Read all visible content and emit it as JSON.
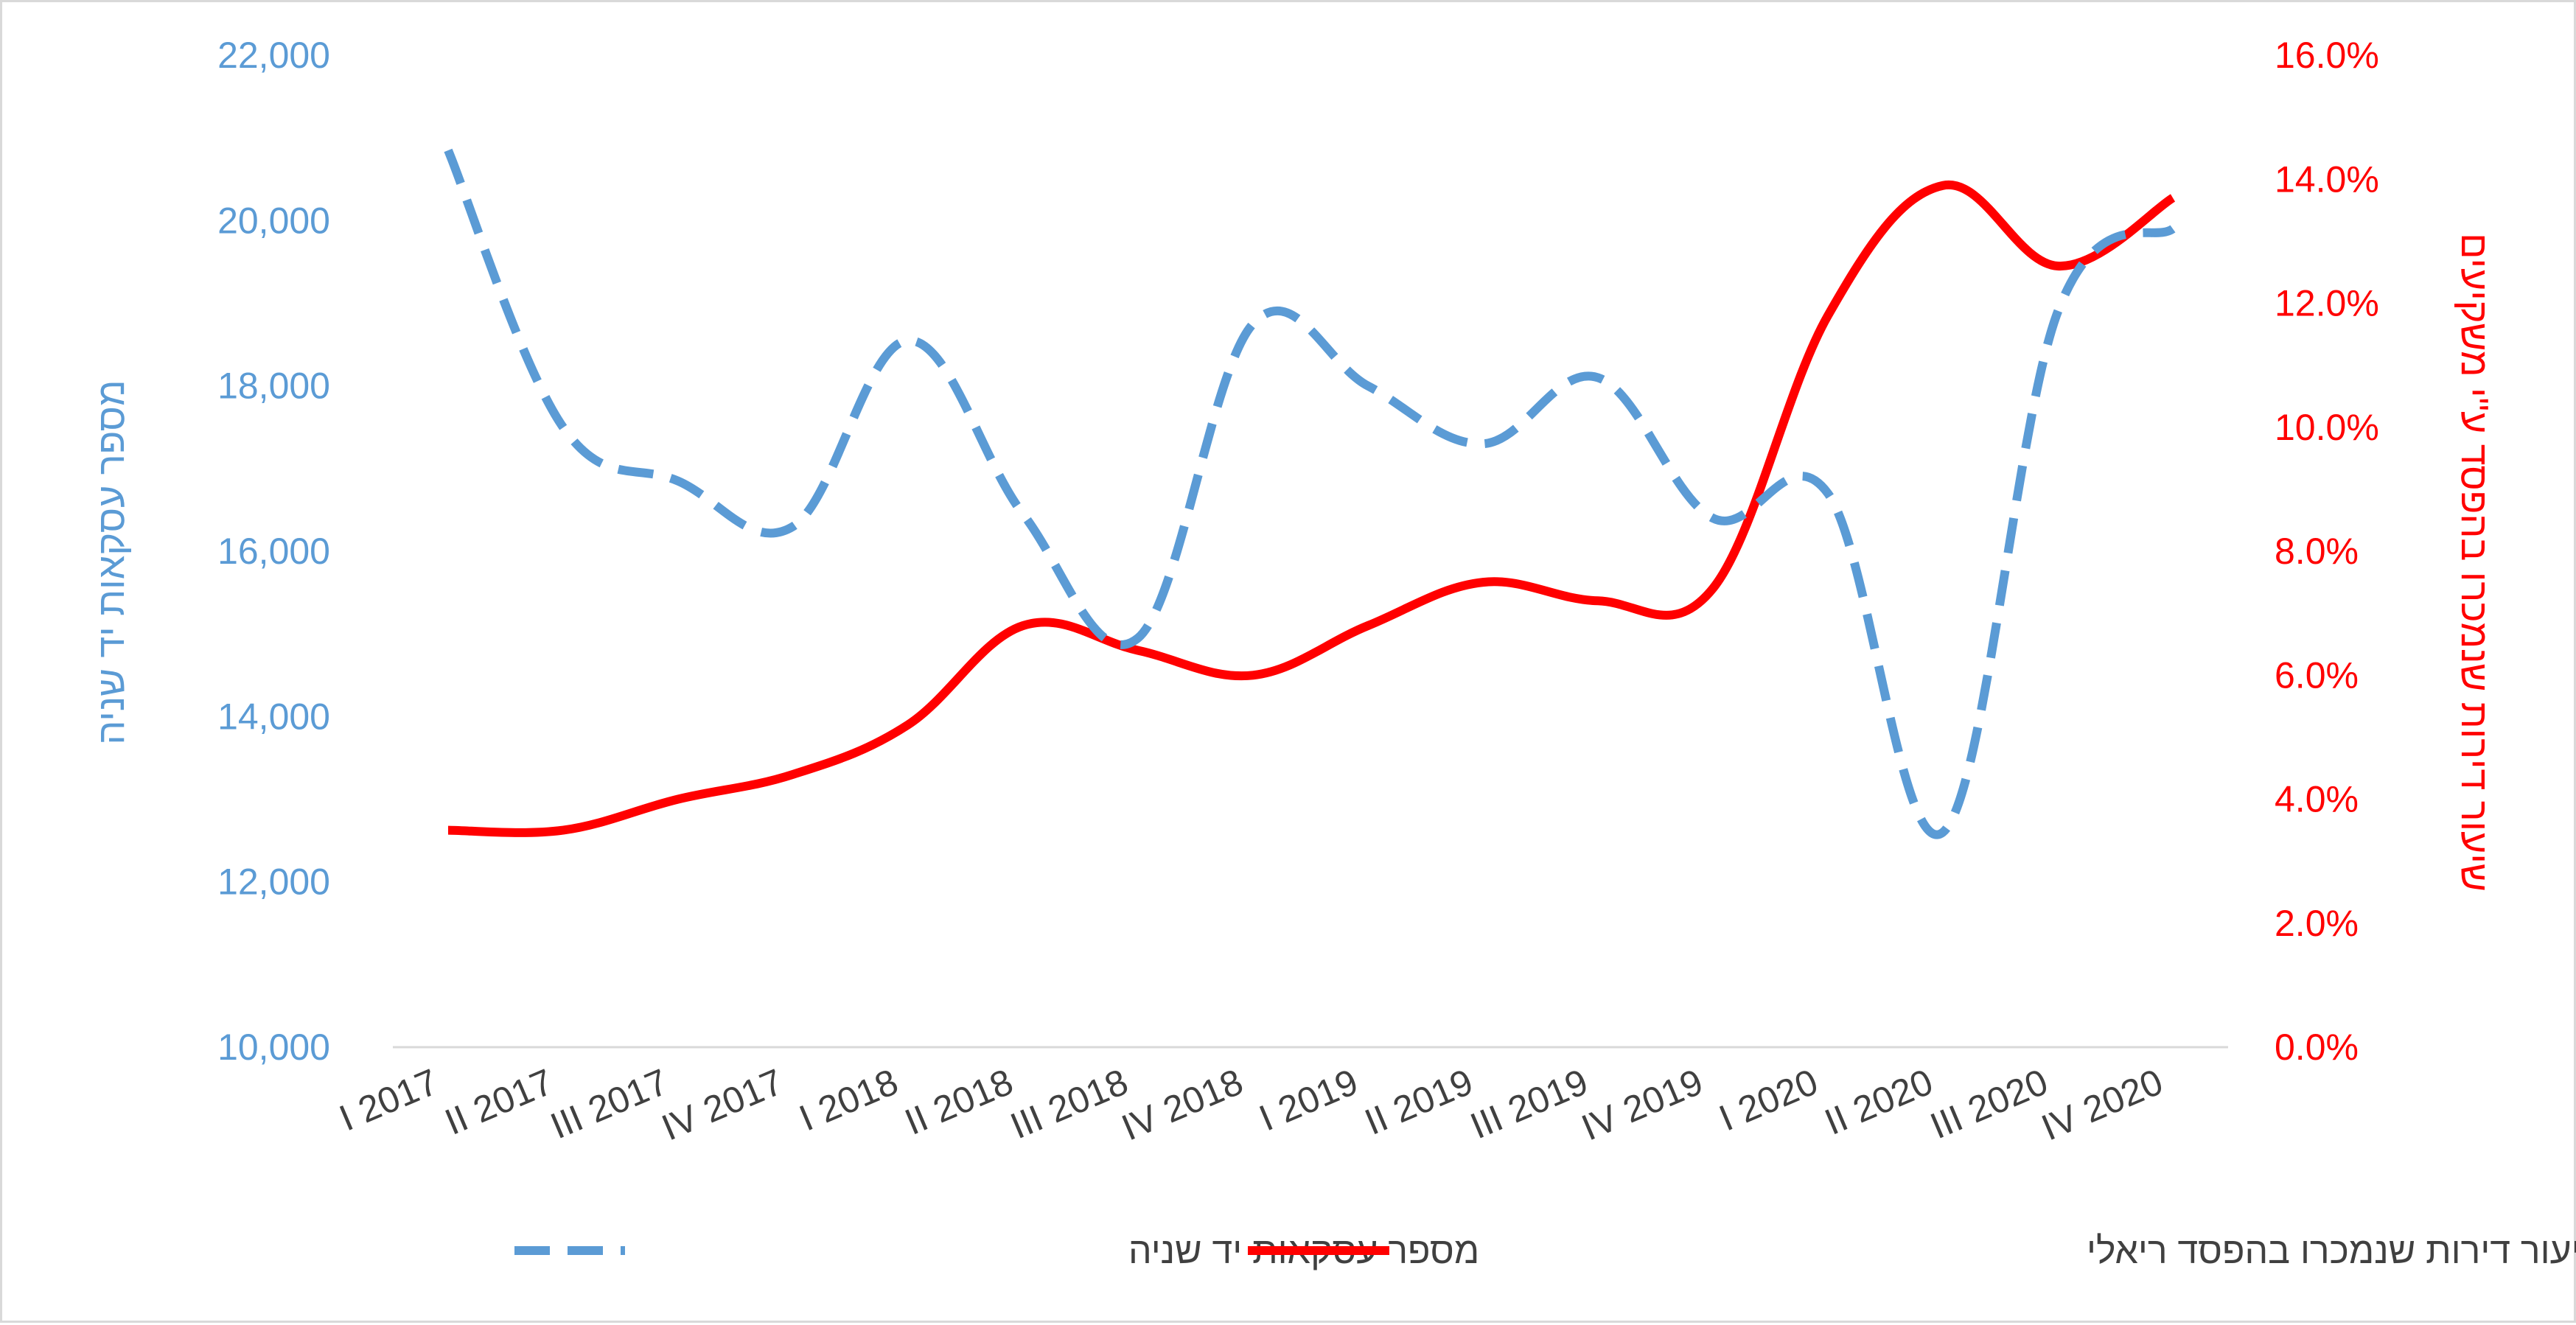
{
  "chart_data": {
    "type": "line",
    "categories": [
      "I 2017",
      "II 2017",
      "III 2017",
      "IV 2017",
      "I 2018",
      "II 2018",
      "III 2018",
      "IV 2018",
      "I 2019",
      "II 2019",
      "III 2019",
      "IV 2019",
      "I 2020",
      "II 2020",
      "III 2020",
      "IV 2020"
    ],
    "series": [
      {
        "name": "מספר עסקאות יד שניה",
        "axis": "left",
        "style": "dashed",
        "color": "#5b9bd5",
        "values": [
          20850,
          17500,
          16850,
          16300,
          18550,
          16450,
          14950,
          18750,
          18000,
          17300,
          18100,
          16400,
          16700,
          12600,
          18900,
          19900
        ]
      },
      {
        "name": "שיעור דירות שנמכרו בהפסד ריאלי",
        "axis": "right",
        "style": "solid",
        "color": "#ff0000",
        "values": [
          3.5,
          3.5,
          4.0,
          4.4,
          5.2,
          6.8,
          6.4,
          6.0,
          6.8,
          7.5,
          7.2,
          7.4,
          11.8,
          13.9,
          12.6,
          13.7
        ]
      }
    ],
    "y_left": {
      "title": "מספר עסקאות יד שניה",
      "ticks": [
        "10,000",
        "12,000",
        "14,000",
        "16,000",
        "18,000",
        "20,000",
        "22,000"
      ],
      "ylim": [
        10000,
        22000
      ],
      "color": "#5b9bd5"
    },
    "y_right": {
      "title": "שיעור דירות שנמכרו בהפסד ע\"י משקיעים",
      "ticks": [
        "0.0%",
        "2.0%",
        "4.0%",
        "6.0%",
        "8.0%",
        "10.0%",
        "12.0%",
        "14.0%",
        "16.0%"
      ],
      "ylim": [
        0,
        16
      ],
      "color": "#ff0000"
    },
    "legend": {
      "placement": "bottom",
      "items": [
        {
          "label": "מספר עסקאות יד שניה",
          "style": "dashed",
          "color": "#5b9bd5"
        },
        {
          "label": "שיעור דירות שנמכרו בהפסד ריאלי",
          "style": "solid",
          "color": "#ff0000"
        }
      ]
    },
    "grid": false
  }
}
